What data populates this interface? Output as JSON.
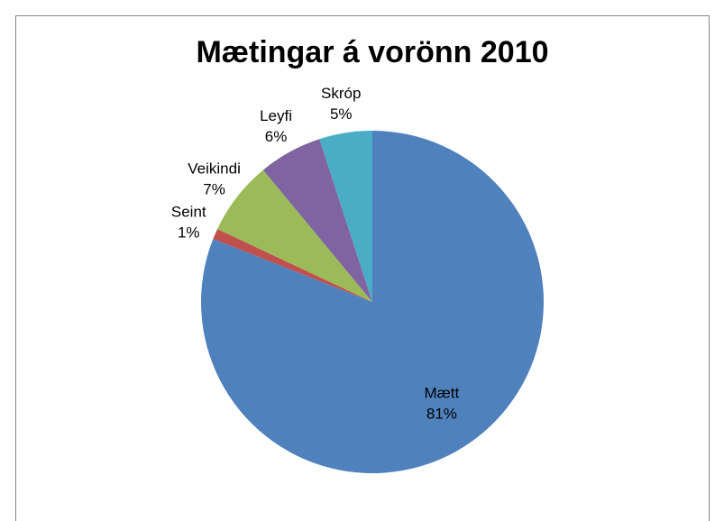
{
  "chart_data": {
    "type": "pie",
    "title": "Mætingar á vorönn 2010",
    "categories": [
      "Mætt",
      "Seint",
      "Veikindi",
      "Leyfi",
      "Skróp"
    ],
    "values": [
      81,
      1,
      7,
      6,
      5
    ],
    "value_labels": [
      "81%",
      "1%",
      "7%",
      "6%",
      "5%"
    ],
    "colors": [
      "#4f81bd",
      "#c0504d",
      "#9bbb59",
      "#8064a2",
      "#4bacc6"
    ]
  }
}
